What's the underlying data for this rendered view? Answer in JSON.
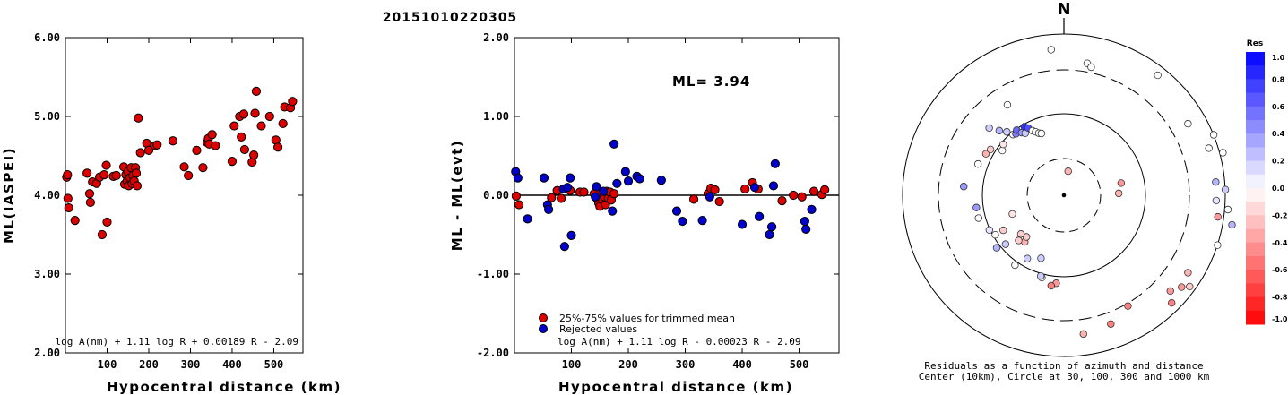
{
  "title": "20151010220305",
  "chart_data": [
    {
      "type": "scatter",
      "xlabel": "Hypocentral distance (km)",
      "ylabel": "ML(IASPEI)",
      "xlim": [
        0,
        570
      ],
      "ylim": [
        2.0,
        6.0
      ],
      "xticks": [
        "100",
        "200",
        "300",
        "400",
        "500"
      ],
      "yticks": [
        "2.00",
        "3.00",
        "4.00",
        "5.00",
        "6.00"
      ],
      "formula": "log A(nm) + 1.11 log R + 0.00189 R - 2.09",
      "points": [
        {
          "x": 3,
          "y": 4.23
        },
        {
          "x": 5,
          "y": 4.26
        },
        {
          "x": 6,
          "y": 3.96
        },
        {
          "x": 8,
          "y": 3.84
        },
        {
          "x": 23,
          "y": 3.68
        },
        {
          "x": 52,
          "y": 4.28
        },
        {
          "x": 58,
          "y": 4.02
        },
        {
          "x": 60,
          "y": 3.91
        },
        {
          "x": 65,
          "y": 4.17
        },
        {
          "x": 75,
          "y": 4.15
        },
        {
          "x": 82,
          "y": 4.23
        },
        {
          "x": 88,
          "y": 3.5
        },
        {
          "x": 93,
          "y": 4.26
        },
        {
          "x": 98,
          "y": 4.38
        },
        {
          "x": 100,
          "y": 3.66
        },
        {
          "x": 115,
          "y": 4.24
        },
        {
          "x": 122,
          "y": 4.25
        },
        {
          "x": 140,
          "y": 4.36
        },
        {
          "x": 142,
          "y": 4.14
        },
        {
          "x": 145,
          "y": 4.26
        },
        {
          "x": 148,
          "y": 4.18
        },
        {
          "x": 150,
          "y": 4.3
        },
        {
          "x": 152,
          "y": 4.12
        },
        {
          "x": 155,
          "y": 4.22
        },
        {
          "x": 158,
          "y": 4.35
        },
        {
          "x": 160,
          "y": 4.15
        },
        {
          "x": 162,
          "y": 4.25
        },
        {
          "x": 165,
          "y": 4.18
        },
        {
          "x": 168,
          "y": 4.35
        },
        {
          "x": 170,
          "y": 4.28
        },
        {
          "x": 172,
          "y": 4.12
        },
        {
          "x": 175,
          "y": 4.98
        },
        {
          "x": 180,
          "y": 4.54
        },
        {
          "x": 195,
          "y": 4.66
        },
        {
          "x": 200,
          "y": 4.57
        },
        {
          "x": 215,
          "y": 4.63
        },
        {
          "x": 220,
          "y": 4.64
        },
        {
          "x": 258,
          "y": 4.69
        },
        {
          "x": 285,
          "y": 4.36
        },
        {
          "x": 295,
          "y": 4.25
        },
        {
          "x": 315,
          "y": 4.57
        },
        {
          "x": 330,
          "y": 4.35
        },
        {
          "x": 340,
          "y": 4.67
        },
        {
          "x": 343,
          "y": 4.72
        },
        {
          "x": 345,
          "y": 4.65
        },
        {
          "x": 352,
          "y": 4.77
        },
        {
          "x": 360,
          "y": 4.63
        },
        {
          "x": 400,
          "y": 4.43
        },
        {
          "x": 405,
          "y": 4.88
        },
        {
          "x": 418,
          "y": 5.0
        },
        {
          "x": 422,
          "y": 4.74
        },
        {
          "x": 428,
          "y": 5.03
        },
        {
          "x": 430,
          "y": 4.58
        },
        {
          "x": 448,
          "y": 4.42
        },
        {
          "x": 452,
          "y": 4.51
        },
        {
          "x": 455,
          "y": 5.04
        },
        {
          "x": 458,
          "y": 5.32
        },
        {
          "x": 470,
          "y": 4.88
        },
        {
          "x": 490,
          "y": 5.0
        },
        {
          "x": 505,
          "y": 4.7
        },
        {
          "x": 510,
          "y": 4.61
        },
        {
          "x": 522,
          "y": 4.91
        },
        {
          "x": 526,
          "y": 5.12
        },
        {
          "x": 540,
          "y": 5.11
        },
        {
          "x": 545,
          "y": 5.19
        }
      ]
    },
    {
      "type": "scatter",
      "xlabel": "Hypocentral distance (km)",
      "ylabel": "ML - ML(evt)",
      "xlim": [
        0,
        570
      ],
      "ylim": [
        -2.0,
        2.0
      ],
      "xticks": [
        "100",
        "200",
        "300",
        "400",
        "500"
      ],
      "yticks": [
        "-2.00",
        "-1.00",
        "0.00",
        "1.00",
        "2.00"
      ],
      "annotation": "ML= 3.94",
      "formula": "log A(nm) + 1.11 log R - 0.00023 R - 2.09",
      "legend": [
        {
          "label": "25%-75% values for trimmed mean",
          "color": "#dd0000"
        },
        {
          "label": "Rejected values",
          "color": "#0000cc"
        }
      ],
      "series": [
        {
          "name": "25%-75% values for trimmed mean",
          "color": "#dd0000",
          "points": [
            {
              "x": 3,
              "y": -0.01
            },
            {
              "x": 8,
              "y": -0.12
            },
            {
              "x": 65,
              "y": -0.03
            },
            {
              "x": 75,
              "y": 0.06
            },
            {
              "x": 82,
              "y": -0.04
            },
            {
              "x": 98,
              "y": 0.06
            },
            {
              "x": 115,
              "y": 0.04
            },
            {
              "x": 122,
              "y": 0.04
            },
            {
              "x": 140,
              "y": 0.02
            },
            {
              "x": 145,
              "y": -0.04
            },
            {
              "x": 148,
              "y": -0.1
            },
            {
              "x": 150,
              "y": -0.14
            },
            {
              "x": 152,
              "y": 0.04
            },
            {
              "x": 155,
              "y": -0.06
            },
            {
              "x": 158,
              "y": -0.02
            },
            {
              "x": 160,
              "y": -0.12
            },
            {
              "x": 162,
              "y": 0.05
            },
            {
              "x": 165,
              "y": -0.04
            },
            {
              "x": 168,
              "y": 0.04
            },
            {
              "x": 170,
              "y": -0.06
            },
            {
              "x": 175,
              "y": 0.02
            },
            {
              "x": 315,
              "y": -0.05
            },
            {
              "x": 340,
              "y": 0.02
            },
            {
              "x": 345,
              "y": 0.09
            },
            {
              "x": 352,
              "y": 0.07
            },
            {
              "x": 360,
              "y": -0.08
            },
            {
              "x": 405,
              "y": 0.08
            },
            {
              "x": 418,
              "y": 0.16
            },
            {
              "x": 428,
              "y": 0.08
            },
            {
              "x": 470,
              "y": -0.07
            },
            {
              "x": 490,
              "y": 0.0
            },
            {
              "x": 505,
              "y": -0.02
            },
            {
              "x": 526,
              "y": 0.05
            },
            {
              "x": 540,
              "y": 0.01
            },
            {
              "x": 545,
              "y": 0.07
            }
          ]
        },
        {
          "name": "Rejected values",
          "color": "#0000cc",
          "points": [
            {
              "x": 2,
              "y": 0.3
            },
            {
              "x": 6,
              "y": 0.22
            },
            {
              "x": 23,
              "y": -0.3
            },
            {
              "x": 52,
              "y": 0.22
            },
            {
              "x": 58,
              "y": -0.12
            },
            {
              "x": 60,
              "y": -0.18
            },
            {
              "x": 86,
              "y": 0.08
            },
            {
              "x": 88,
              "y": -0.65
            },
            {
              "x": 93,
              "y": 0.1
            },
            {
              "x": 98,
              "y": 0.22
            },
            {
              "x": 100,
              "y": -0.51
            },
            {
              "x": 142,
              "y": -0.02
            },
            {
              "x": 144,
              "y": 0.11
            },
            {
              "x": 156,
              "y": 0.05
            },
            {
              "x": 172,
              "y": -0.2
            },
            {
              "x": 175,
              "y": 0.65
            },
            {
              "x": 180,
              "y": 0.15
            },
            {
              "x": 195,
              "y": 0.3
            },
            {
              "x": 200,
              "y": 0.18
            },
            {
              "x": 215,
              "y": 0.24
            },
            {
              "x": 220,
              "y": 0.21
            },
            {
              "x": 258,
              "y": 0.19
            },
            {
              "x": 285,
              "y": -0.2
            },
            {
              "x": 295,
              "y": -0.33
            },
            {
              "x": 330,
              "y": -0.32
            },
            {
              "x": 343,
              "y": -0.02
            },
            {
              "x": 400,
              "y": -0.37
            },
            {
              "x": 422,
              "y": 0.1
            },
            {
              "x": 430,
              "y": -0.27
            },
            {
              "x": 448,
              "y": -0.5
            },
            {
              "x": 452,
              "y": -0.4
            },
            {
              "x": 455,
              "y": 0.12
            },
            {
              "x": 458,
              "y": 0.4
            },
            {
              "x": 510,
              "y": -0.33
            },
            {
              "x": 512,
              "y": -0.43
            },
            {
              "x": 522,
              "y": -0.18
            }
          ]
        }
      ]
    },
    {
      "type": "scatter",
      "subtype": "polar residual map",
      "north_label": "N",
      "caption_line1": "Residuals as a function of azimuth and distance",
      "caption_line2": "Center (10km), Circle at 30, 100, 300 and 1000 km",
      "colorbar": {
        "title": "Res",
        "ticks": [
          "1.0",
          "0.8",
          "0.6",
          "0.4",
          "0.2",
          "0.0",
          "-0.2",
          "-0.4",
          "-0.6",
          "-0.8",
          "-1.0"
        ]
      },
      "stations": [
        {
          "az": 355,
          "dist": 240,
          "res": 0.0
        },
        {
          "az": 10,
          "dist": 220,
          "res": 0.0
        },
        {
          "az": 12,
          "dist": 215,
          "res": 0.0
        },
        {
          "az": 38,
          "dist": 250,
          "res": 0.0
        },
        {
          "az": 78,
          "dist": 96,
          "res": -0.4
        },
        {
          "az": 60,
          "dist": 235,
          "res": 0.0
        },
        {
          "az": 68,
          "dist": 265,
          "res": 0.0
        },
        {
          "az": 72,
          "dist": 250,
          "res": 0.0
        },
        {
          "az": 75,
          "dist": 270,
          "res": 0.0
        },
        {
          "az": 85,
          "dist": 250,
          "res": 0.3
        },
        {
          "az": 88,
          "dist": 265,
          "res": 0.2
        },
        {
          "az": 92,
          "dist": 250,
          "res": 0.1
        },
        {
          "az": 95,
          "dist": 270,
          "res": 0.0
        },
        {
          "az": 98,
          "dist": 255,
          "res": -0.4
        },
        {
          "az": 100,
          "dist": 280,
          "res": 0.3
        },
        {
          "az": 108,
          "dist": 265,
          "res": 0.0
        },
        {
          "az": 122,
          "dist": 240,
          "res": -0.3
        },
        {
          "az": 126,
          "dist": 255,
          "res": -0.2
        },
        {
          "az": 128,
          "dist": 245,
          "res": -0.4
        },
        {
          "az": 132,
          "dist": 235,
          "res": -0.4
        },
        {
          "az": 135,
          "dist": 250,
          "res": -0.5
        },
        {
          "az": 150,
          "dist": 210,
          "res": -0.5
        },
        {
          "az": 160,
          "dist": 225,
          "res": -0.5
        },
        {
          "az": 172,
          "dist": 230,
          "res": -0.3
        },
        {
          "az": 88,
          "dist": 90,
          "res": -0.3
        },
        {
          "az": 10,
          "dist": 40,
          "res": -0.3
        },
        {
          "az": 185,
          "dist": 145,
          "res": -0.4
        },
        {
          "az": 188,
          "dist": 150,
          "res": -0.5
        },
        {
          "az": 195,
          "dist": 140,
          "res": 0.0
        },
        {
          "az": 196,
          "dist": 138,
          "res": 0.2
        },
        {
          "az": 200,
          "dist": 110,
          "res": 0.2
        },
        {
          "az": 210,
          "dist": 120,
          "res": 0.2
        },
        {
          "az": 215,
          "dist": 140,
          "res": 0.0
        },
        {
          "az": 220,
          "dist": 100,
          "res": -0.3
        },
        {
          "az": 225,
          "dist": 105,
          "res": -0.2
        },
        {
          "az": 222,
          "dist": 92,
          "res": -0.2
        },
        {
          "az": 228,
          "dist": 95,
          "res": -0.2
        },
        {
          "az": 230,
          "dist": 125,
          "res": 0.2
        },
        {
          "az": 232,
          "dist": 140,
          "res": 0.3
        },
        {
          "az": 240,
          "dist": 130,
          "res": 0.0
        },
        {
          "az": 245,
          "dist": 135,
          "res": 0.1
        },
        {
          "az": 255,
          "dist": 145,
          "res": 0.0
        },
        {
          "az": 240,
          "dist": 115,
          "res": -0.2
        },
        {
          "az": 250,
          "dist": 90,
          "res": -0.1
        },
        {
          "az": 262,
          "dist": 145,
          "res": 0.4
        },
        {
          "az": 275,
          "dist": 165,
          "res": 0.4
        },
        {
          "az": 290,
          "dist": 150,
          "res": 0.0
        },
        {
          "az": 298,
          "dist": 145,
          "res": -0.3
        },
        {
          "az": 302,
          "dist": 142,
          "res": -0.2
        },
        {
          "az": 306,
          "dist": 125,
          "res": 0.0
        },
        {
          "az": 310,
          "dist": 130,
          "res": -0.1
        },
        {
          "az": 315,
          "dist": 150,
          "res": 0.3
        },
        {
          "az": 318,
          "dist": 140,
          "res": 0.2
        },
        {
          "az": 320,
          "dist": 130,
          "res": 0.0
        },
        {
          "az": 322,
          "dist": 128,
          "res": 0.5
        },
        {
          "az": 324,
          "dist": 132,
          "res": 0.6
        },
        {
          "az": 326,
          "dist": 124,
          "res": 0.4
        },
        {
          "az": 328,
          "dist": 120,
          "res": 0.2
        },
        {
          "az": 330,
          "dist": 130,
          "res": 0.8
        },
        {
          "az": 332,
          "dist": 125,
          "res": 0.7
        },
        {
          "az": 334,
          "dist": 118,
          "res": 0.0
        },
        {
          "az": 336,
          "dist": 114,
          "res": 0.0
        },
        {
          "az": 338,
          "dist": 110,
          "res": 0.0
        },
        {
          "az": 340,
          "dist": 108,
          "res": 0.0
        },
        {
          "az": 312,
          "dist": 165,
          "res": 0.2
        },
        {
          "az": 328,
          "dist": 175,
          "res": 0.0
        }
      ]
    }
  ]
}
